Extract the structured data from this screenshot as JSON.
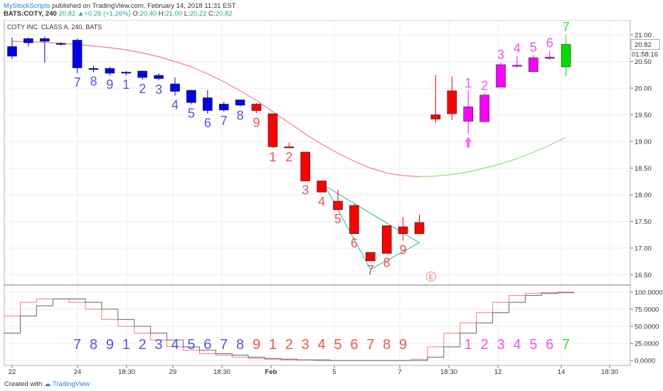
{
  "header": {
    "author": "MyStockScripts",
    "published": "published on TradingView.com, February 14, 2018 11:31 EST",
    "symbol": "BATS:COTY, 240",
    "last": "20.82",
    "change": "+0.26 (+1.26%)",
    "open_label": "O:",
    "open": "20.40",
    "high_label": "H:",
    "high": "21.00",
    "low_label": "L:",
    "low": "20.22",
    "close_label": "C:",
    "close": "20.82"
  },
  "chart_data": [
    {
      "type": "candlestick",
      "title": "COTY INC. CLASS A, 240, BATS",
      "ylim": [
        16.4,
        21.2
      ],
      "y_ticks": [
        "21.00",
        "20.50",
        "20.00",
        "19.50",
        "19.00",
        "18.50",
        "18.00",
        "17.50",
        "17.00",
        "16.50"
      ],
      "price_label": "20.82",
      "countdown_label": "01:58:16",
      "x_ticks": [
        "22",
        "24",
        "18:30",
        "29",
        "18:30",
        "Feb",
        "5",
        "7",
        "18:30",
        "12",
        "14",
        "18:30"
      ],
      "earnings_marker": "E",
      "candles": [
        {
          "o": 20.6,
          "h": 20.95,
          "l": 20.55,
          "c": 20.78,
          "color": "#0000ee",
          "count": ""
        },
        {
          "o": 20.85,
          "h": 20.95,
          "l": 20.78,
          "c": 20.93,
          "color": "#0000ee",
          "count": ""
        },
        {
          "o": 20.88,
          "h": 20.97,
          "l": 20.48,
          "c": 20.93,
          "color": "#0000ee",
          "count": ""
        },
        {
          "o": 20.84,
          "h": 20.86,
          "l": 20.8,
          "c": 20.82,
          "color": "#0000ee",
          "count": ""
        },
        {
          "o": 20.9,
          "h": 20.93,
          "l": 20.28,
          "c": 20.38,
          "color": "#0000ee",
          "count": "7"
        },
        {
          "o": 20.36,
          "h": 20.42,
          "l": 20.3,
          "c": 20.37,
          "color": "#0000ee",
          "count": "8"
        },
        {
          "o": 20.37,
          "h": 20.4,
          "l": 20.24,
          "c": 20.28,
          "color": "#0000ee",
          "count": "9"
        },
        {
          "o": 20.3,
          "h": 20.32,
          "l": 20.24,
          "c": 20.28,
          "color": "#0000ee",
          "count": "1"
        },
        {
          "o": 20.32,
          "h": 20.33,
          "l": 20.16,
          "c": 20.2,
          "color": "#0000ee",
          "count": "2"
        },
        {
          "o": 20.24,
          "h": 20.28,
          "l": 20.15,
          "c": 20.18,
          "color": "#0000ee",
          "count": "3"
        },
        {
          "o": 20.08,
          "h": 20.2,
          "l": 19.86,
          "c": 19.94,
          "color": "#0000ee",
          "count": "4"
        },
        {
          "o": 19.96,
          "h": 19.97,
          "l": 19.7,
          "c": 19.73,
          "color": "#0000ee",
          "count": "5"
        },
        {
          "o": 19.82,
          "h": 19.96,
          "l": 19.52,
          "c": 19.58,
          "color": "#0000ee",
          "count": "6"
        },
        {
          "o": 19.7,
          "h": 19.74,
          "l": 19.56,
          "c": 19.59,
          "color": "#0000ee",
          "count": "7"
        },
        {
          "o": 19.78,
          "h": 19.78,
          "l": 19.66,
          "c": 19.68,
          "color": "#0000ee",
          "count": "8"
        },
        {
          "o": 19.7,
          "h": 19.72,
          "l": 19.53,
          "c": 19.58,
          "color": "#ff0000",
          "count": "9"
        },
        {
          "o": 19.52,
          "h": 19.52,
          "l": 18.88,
          "c": 18.9,
          "color": "#ff0000",
          "count": "1"
        },
        {
          "o": 18.9,
          "h": 18.98,
          "l": 18.88,
          "c": 18.88,
          "color": "#ff0000",
          "count": "2"
        },
        {
          "o": 18.8,
          "h": 18.8,
          "l": 18.26,
          "c": 18.26,
          "color": "#ff0000",
          "count": "3"
        },
        {
          "o": 18.26,
          "h": 18.26,
          "l": 18.05,
          "c": 18.05,
          "color": "#ff0000",
          "count": "4"
        },
        {
          "o": 17.88,
          "h": 18.1,
          "l": 17.72,
          "c": 17.72,
          "color": "#ff0000",
          "count": "5"
        },
        {
          "o": 17.8,
          "h": 17.82,
          "l": 17.27,
          "c": 17.27,
          "color": "#ff0000",
          "count": "6"
        },
        {
          "o": 16.92,
          "h": 16.92,
          "l": 16.76,
          "c": 16.76,
          "color": "#ff0000",
          "count": "7"
        },
        {
          "o": 17.42,
          "h": 17.42,
          "l": 16.9,
          "c": 16.9,
          "color": "#ff0000",
          "count": "8"
        },
        {
          "o": 17.4,
          "h": 17.58,
          "l": 17.14,
          "c": 17.27,
          "color": "#ff0000",
          "count": "9"
        },
        {
          "o": 17.48,
          "h": 17.63,
          "l": 17.26,
          "c": 17.27,
          "color": "#ff0000",
          "count": ""
        },
        {
          "o": 19.5,
          "h": 20.25,
          "l": 19.35,
          "c": 19.42,
          "color": "#ff0000",
          "count": ""
        },
        {
          "o": 19.95,
          "h": 20.22,
          "l": 19.4,
          "c": 19.52,
          "color": "#ff0000",
          "count": ""
        },
        {
          "o": 19.38,
          "h": 19.95,
          "l": 19.14,
          "c": 19.65,
          "color": "#ff00ff",
          "count": "1"
        },
        {
          "o": 19.37,
          "h": 19.9,
          "l": 19.37,
          "c": 19.87,
          "color": "#ff00ff",
          "count": "2"
        },
        {
          "o": 20.02,
          "h": 20.48,
          "l": 20.02,
          "c": 20.44,
          "color": "#ff00ff",
          "count": "3"
        },
        {
          "o": 20.41,
          "h": 20.6,
          "l": 20.38,
          "c": 20.43,
          "color": "#ff00ff",
          "count": "4"
        },
        {
          "o": 20.31,
          "h": 20.62,
          "l": 20.3,
          "c": 20.57,
          "color": "#ff00ff",
          "count": "5"
        },
        {
          "o": 20.56,
          "h": 20.7,
          "l": 20.53,
          "c": 20.58,
          "color": "#ff00ff",
          "count": "6"
        },
        {
          "o": 20.4,
          "h": 21.0,
          "l": 20.22,
          "c": 20.82,
          "color": "#00dd00",
          "count": "7"
        }
      ],
      "count_colors": {
        "blue": "#5555dd",
        "red": "#ee5555",
        "magenta": "#ee55ee",
        "green": "#33dd33"
      },
      "moving_average": [
        20.88,
        20.87,
        20.86,
        20.84,
        20.82,
        20.79,
        20.76,
        20.72,
        20.66,
        20.59,
        20.5,
        20.4,
        20.27,
        20.12,
        19.95,
        19.77,
        19.56,
        19.35,
        19.14,
        18.95,
        18.78,
        18.63,
        18.5,
        18.41,
        18.36,
        18.34,
        18.35,
        18.38,
        18.43,
        18.5,
        18.58,
        18.68,
        18.8,
        18.93,
        19.08
      ],
      "ma_colors": {
        "down": "#f08080",
        "up": "#90e080"
      },
      "up_arrow": {
        "index": 28,
        "color": "#ff66ff"
      },
      "triangle": {
        "points": [
          [
            18.17,
            18.17
          ],
          [
            17.1,
            17.1
          ],
          [
            16.6,
            16.6
          ]
        ],
        "color": "#26b5a5"
      },
      "triangle_pts": [
        {
          "i": 19.2,
          "v": 18.17
        },
        {
          "i": 25.0,
          "v": 17.1
        },
        {
          "i": 22.0,
          "v": 16.6
        }
      ]
    },
    {
      "type": "line",
      "title": "",
      "ylim": [
        -5,
        105
      ],
      "y_ticks": [
        "100.0000",
        "75.0000",
        "50.0000",
        "25.0000",
        "0.0000"
      ],
      "series": [
        {
          "values": [
            65,
            85,
            90,
            90,
            85,
            75,
            60,
            50,
            40,
            30,
            20,
            15,
            10,
            8,
            5,
            3,
            2,
            1,
            1,
            0,
            0,
            0,
            0,
            0,
            0,
            2,
            20,
            40,
            55,
            70,
            85,
            95,
            98,
            99,
            100
          ],
          "color": "#f08080"
        },
        {
          "values": [
            40,
            65,
            80,
            90,
            90,
            85,
            75,
            60,
            50,
            40,
            30,
            20,
            15,
            10,
            8,
            5,
            3,
            2,
            1,
            1,
            0,
            0,
            0,
            0,
            0,
            0,
            5,
            20,
            40,
            55,
            70,
            85,
            95,
            98,
            99
          ],
          "color": "#666666"
        }
      ],
      "count_labels": [
        "7",
        "8",
        "9",
        "1",
        "2",
        "3",
        "4",
        "5",
        "6",
        "7",
        "8",
        "9",
        "1",
        "2",
        "3",
        "4",
        "5",
        "6",
        "7",
        "8",
        "9",
        "1",
        "2",
        "3",
        "4",
        "5",
        "6",
        "7"
      ]
    }
  ],
  "footer": {
    "created_with": "Created with",
    "brand": "TradingView"
  }
}
